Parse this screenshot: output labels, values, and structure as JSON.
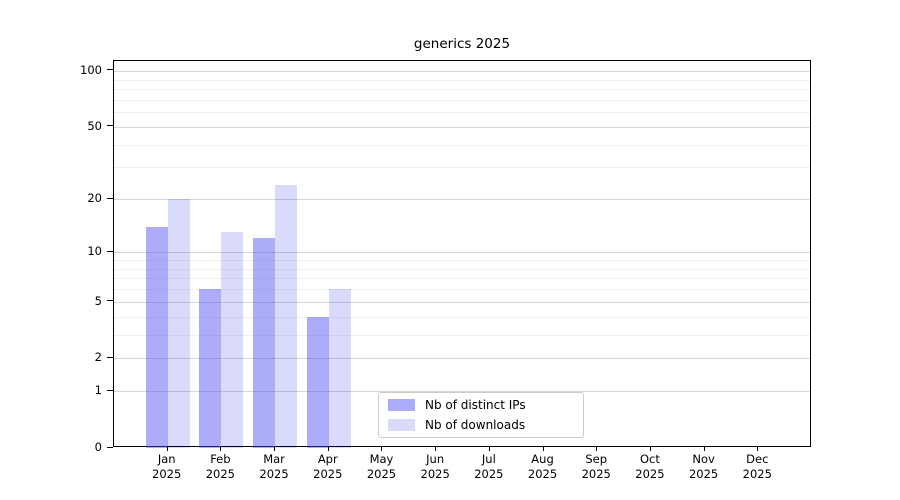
{
  "chart_data": {
    "type": "bar",
    "title": "generics 2025",
    "categories": [
      "Jan",
      "Feb",
      "Mar",
      "Apr",
      "May",
      "Jun",
      "Jul",
      "Aug",
      "Sep",
      "Oct",
      "Nov",
      "Dec"
    ],
    "year": "2025",
    "series": [
      {
        "name": "Nb of distinct IPs",
        "color": "rgba(70,70,245,0.45)",
        "values": [
          14,
          6,
          12,
          4,
          null,
          null,
          null,
          null,
          null,
          null,
          null,
          null
        ]
      },
      {
        "name": "Nb of downloads",
        "color": "rgba(10,10,230,0.15)",
        "values": [
          20,
          13,
          24,
          6,
          null,
          null,
          null,
          null,
          null,
          null,
          null,
          null
        ]
      }
    ],
    "xlabel": "",
    "ylabel": "",
    "y_axis": {
      "scale": "log10(value+1)",
      "ticks": [
        0,
        1,
        2,
        5,
        10,
        20,
        50,
        100
      ],
      "minor_gridlines": [
        3,
        4,
        6,
        7,
        8,
        9,
        30,
        40,
        60,
        70,
        80,
        90
      ],
      "top_value_approx": 113
    },
    "grid": true,
    "legend_position": "lower center",
    "colors": {
      "major_grid": "#d6d6d6",
      "minor_grid": "#f0f0f0",
      "axis": "#000000",
      "legend_border": "#cccccc"
    }
  }
}
